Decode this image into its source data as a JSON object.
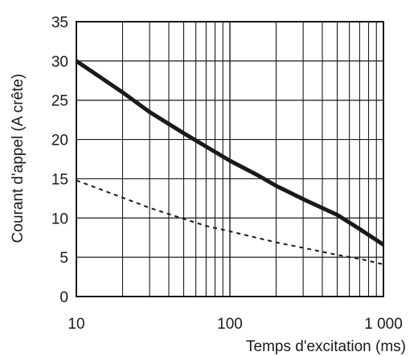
{
  "chart_data": {
    "type": "line",
    "xscale": "log",
    "xlim": [
      10,
      1000
    ],
    "ylim": [
      0,
      35
    ],
    "grid": true,
    "xlabel": "Temps d'excitation (ms)",
    "ylabel": "Courant d'appel (A crête)",
    "x_ticks": [
      {
        "value": 10,
        "label": "10"
      },
      {
        "value": 100,
        "label": "100"
      },
      {
        "value": 1000,
        "label": "1 000"
      }
    ],
    "y_ticks": [
      {
        "value": 0,
        "label": "0"
      },
      {
        "value": 5,
        "label": "5"
      },
      {
        "value": 10,
        "label": "10"
      },
      {
        "value": 15,
        "label": "15"
      },
      {
        "value": 20,
        "label": "20"
      },
      {
        "value": 25,
        "label": "25"
      },
      {
        "value": 30,
        "label": "30"
      },
      {
        "value": 35,
        "label": "35"
      }
    ],
    "series": [
      {
        "style": "solid",
        "color": "#1a1a1a",
        "x": [
          10,
          20,
          30,
          50,
          70,
          100,
          150,
          200,
          300,
          500,
          700,
          1000
        ],
        "y": [
          30,
          26,
          23.5,
          20.8,
          19.1,
          17.3,
          15.5,
          14.1,
          12.4,
          10.4,
          8.6,
          6.6
        ]
      },
      {
        "style": "dashed",
        "color": "#1a1a1a",
        "x": [
          10,
          20,
          30,
          50,
          70,
          100,
          200,
          300,
          500,
          700,
          1000
        ],
        "y": [
          14.8,
          12.6,
          11.3,
          9.9,
          9.0,
          8.3,
          6.9,
          6.2,
          5.3,
          4.8,
          4.1
        ]
      }
    ]
  }
}
